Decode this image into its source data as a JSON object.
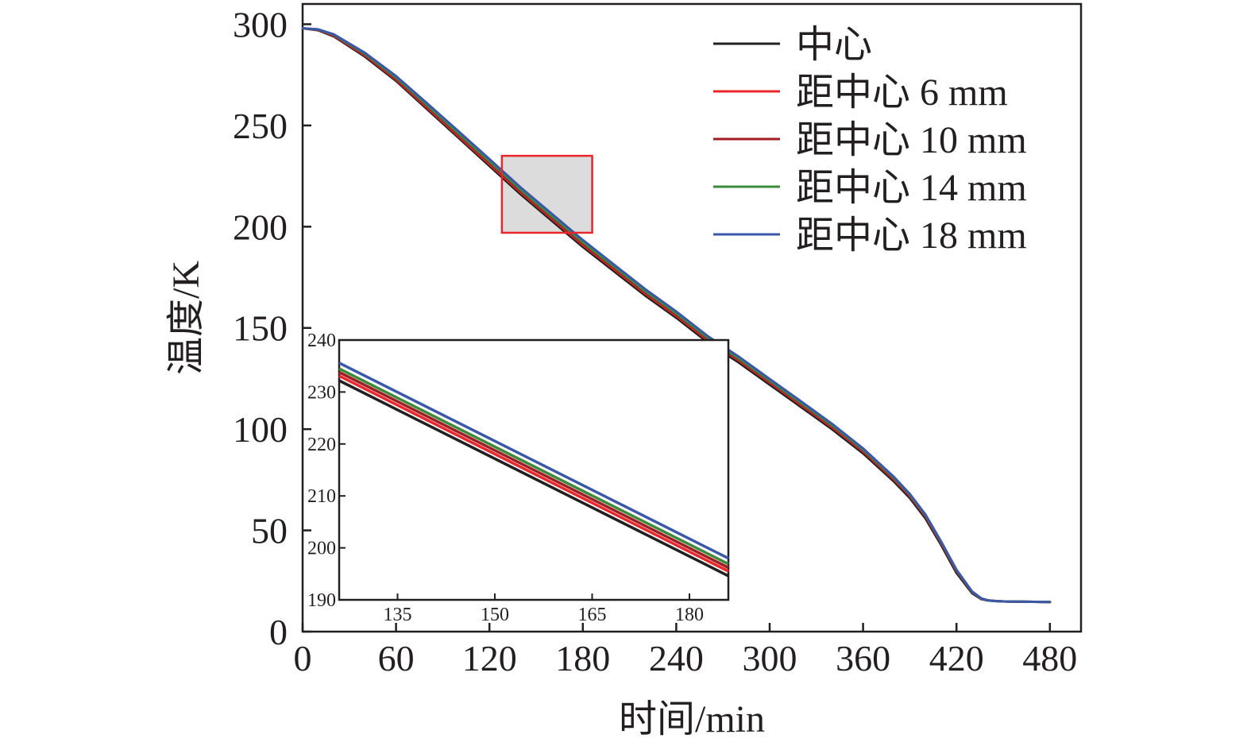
{
  "chart_data": [
    {
      "type": "line",
      "title": "",
      "xlabel": "时间/min",
      "ylabel": "温度/K",
      "xlim": [
        0,
        500
      ],
      "ylim": [
        0,
        310
      ],
      "xticks": [
        0,
        60,
        120,
        180,
        240,
        300,
        360,
        420,
        480
      ],
      "yticks": [
        0,
        50,
        100,
        150,
        200,
        250,
        300
      ],
      "grid": false,
      "legend_position": "top-right",
      "zoom_region": {
        "x": [
          128,
          186
        ],
        "y": [
          197,
          235
        ]
      },
      "series": [
        {
          "name": "中心",
          "color": "#231f20",
          "offset": 0,
          "x": [
            0,
            10,
            20,
            40,
            60,
            80,
            100,
            120,
            140,
            160,
            180,
            200,
            220,
            240,
            260,
            280,
            300,
            320,
            340,
            360,
            380,
            390,
            400,
            410,
            420,
            430,
            436,
            440,
            445,
            450,
            460,
            470,
            480
          ],
          "y": [
            298,
            297,
            294,
            284,
            272,
            258,
            244,
            230,
            216,
            203,
            190,
            178,
            166,
            155,
            143,
            133,
            122,
            111,
            100,
            88,
            74,
            66,
            56,
            43,
            29,
            19,
            16,
            15.4,
            15.1,
            14.9,
            14.8,
            14.7,
            14.6
          ]
        },
        {
          "name": "距中心 6 mm",
          "color": "#e8262b",
          "offset": 0.9,
          "x": [
            0,
            10,
            20,
            40,
            60,
            80,
            100,
            120,
            140,
            160,
            180,
            200,
            220,
            240,
            260,
            280,
            300,
            320,
            340,
            360,
            380,
            390,
            400,
            410,
            420,
            430,
            436,
            440,
            445,
            450,
            460,
            470,
            480
          ],
          "y": [
            298,
            297.2,
            294.4,
            284.6,
            272.7,
            258.8,
            244.8,
            230.9,
            217,
            204,
            191,
            179,
            167,
            156,
            144,
            134,
            123,
            112,
            101,
            89,
            75,
            67,
            57,
            44,
            30,
            19.5,
            16.2,
            15.4,
            15.1,
            14.9,
            14.8,
            14.7,
            14.6
          ]
        },
        {
          "name": "距中心 10 mm",
          "color": "#a01d22",
          "offset": 1.6,
          "x": [
            0,
            10,
            20,
            40,
            60,
            80,
            100,
            120,
            140,
            160,
            180,
            200,
            220,
            240,
            260,
            280,
            300,
            320,
            340,
            360,
            380,
            390,
            400,
            410,
            420,
            430,
            436,
            440,
            445,
            450,
            460,
            470,
            480
          ],
          "y": [
            298,
            297.3,
            294.6,
            285,
            273.2,
            259.4,
            245.5,
            231.6,
            217.6,
            204.6,
            191.6,
            179.6,
            167.6,
            156.6,
            144.6,
            134.5,
            123.5,
            112.5,
            101.5,
            89.5,
            75.4,
            67.3,
            57.3,
            44.3,
            30.2,
            19.6,
            16.2,
            15.4,
            15.1,
            14.9,
            14.8,
            14.7,
            14.6
          ]
        },
        {
          "name": "距中心 14 mm",
          "color": "#3c8a3c",
          "offset": 2.3,
          "x": [
            0,
            10,
            20,
            40,
            60,
            80,
            100,
            120,
            140,
            160,
            180,
            200,
            220,
            240,
            260,
            280,
            300,
            320,
            340,
            360,
            380,
            390,
            400,
            410,
            420,
            430,
            436,
            440,
            445,
            450,
            460,
            470,
            480
          ],
          "y": [
            298,
            297.4,
            294.8,
            285.4,
            273.7,
            260,
            246.1,
            232.3,
            218.3,
            205.3,
            192.3,
            180.3,
            168.2,
            157.2,
            145.2,
            135,
            124,
            113,
            102,
            89.9,
            75.8,
            67.6,
            57.6,
            44.5,
            30.4,
            19.7,
            16.3,
            15.4,
            15.1,
            14.9,
            14.8,
            14.7,
            14.6
          ]
        },
        {
          "name": "距中心 18 mm",
          "color": "#3b58a8",
          "offset": 3.4,
          "x": [
            0,
            10,
            20,
            40,
            60,
            80,
            100,
            120,
            140,
            160,
            180,
            200,
            220,
            240,
            260,
            280,
            300,
            320,
            340,
            360,
            380,
            390,
            400,
            410,
            420,
            430,
            436,
            440,
            445,
            450,
            460,
            470,
            480
          ],
          "y": [
            298,
            297.5,
            295,
            285.9,
            274.4,
            260.9,
            247.2,
            233.4,
            219.4,
            206.4,
            193.4,
            181.3,
            169.2,
            158.1,
            146.1,
            135.9,
            124.8,
            113.8,
            102.7,
            90.5,
            76.3,
            68,
            57.9,
            44.7,
            30.6,
            19.8,
            16.4,
            15.5,
            15.1,
            14.9,
            14.8,
            14.7,
            14.6
          ]
        }
      ]
    },
    {
      "type": "line",
      "title": "",
      "xlabel": "",
      "ylabel": "",
      "xlim": [
        126,
        186
      ],
      "ylim": [
        190,
        240
      ],
      "xticks": [
        135,
        150,
        165,
        180
      ],
      "yticks": [
        190,
        200,
        210,
        220,
        230,
        240
      ],
      "grid": false,
      "legend_position": "none",
      "series": [
        {
          "name": "中心",
          "color": "#231f20",
          "x": [
            126,
            186
          ],
          "y": [
            232.2,
            194.6
          ]
        },
        {
          "name": "距中心 6 mm",
          "color": "#e8262b",
          "x": [
            126,
            186
          ],
          "y": [
            233.1,
            195.5
          ]
        },
        {
          "name": "距中心 10 mm",
          "color": "#a01d22",
          "x": [
            126,
            186
          ],
          "y": [
            233.8,
            196.2
          ]
        },
        {
          "name": "距中心 14 mm",
          "color": "#3c8a3c",
          "x": [
            126,
            186
          ],
          "y": [
            234.5,
            196.9
          ]
        },
        {
          "name": "距中心 18 mm",
          "color": "#3b58a8",
          "x": [
            126,
            186
          ],
          "y": [
            235.6,
            198
          ]
        }
      ]
    }
  ]
}
